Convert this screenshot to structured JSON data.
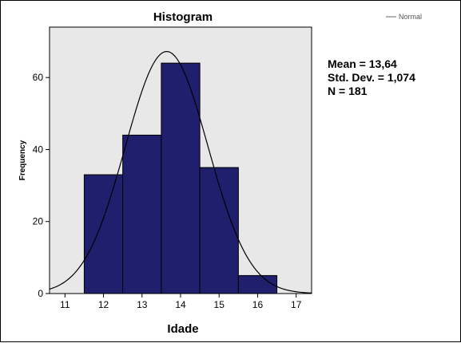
{
  "chart_data": {
    "type": "histogram",
    "title": "Histogram",
    "xlabel": "Idade",
    "ylabel": "Frequency",
    "bins": [
      {
        "from": 11.5,
        "to": 12.5,
        "count": 33
      },
      {
        "from": 12.5,
        "to": 13.5,
        "count": 44
      },
      {
        "from": 13.5,
        "to": 14.5,
        "count": 64
      },
      {
        "from": 14.5,
        "to": 15.5,
        "count": 35
      },
      {
        "from": 15.5,
        "to": 16.5,
        "count": 5
      }
    ],
    "xlim": [
      10.6,
      17.4
    ],
    "ylim": [
      0,
      74
    ],
    "x_ticks": [
      11,
      12,
      13,
      14,
      15,
      16,
      17
    ],
    "y_ticks": [
      0,
      20,
      40,
      60
    ],
    "normal_curve": {
      "mean": 13.64,
      "sd": 1.074,
      "n": 181,
      "bin_width": 1
    },
    "legend": [
      {
        "name": "Normal"
      }
    ],
    "stats": [
      "Mean = 13,64",
      "Std. Dev. = 1,074",
      "N = 181"
    ],
    "colors": {
      "bar": "#1f1f6e",
      "plot_bg": "#e8e8e8",
      "curve": "#000000"
    }
  }
}
